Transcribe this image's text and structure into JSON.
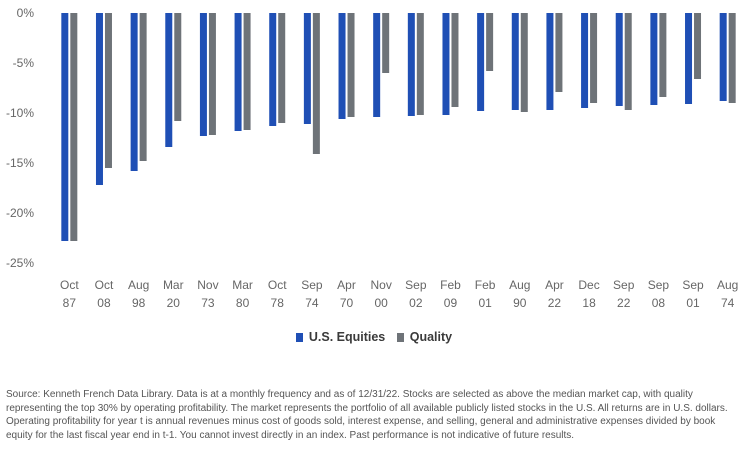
{
  "chart_data": {
    "type": "bar",
    "categories": [
      [
        "Oct",
        "87"
      ],
      [
        "Oct",
        "08"
      ],
      [
        "Aug",
        "98"
      ],
      [
        "Mar",
        "20"
      ],
      [
        "Nov",
        "73"
      ],
      [
        "Mar",
        "80"
      ],
      [
        "Oct",
        "78"
      ],
      [
        "Sep",
        "74"
      ],
      [
        "Apr",
        "70"
      ],
      [
        "Nov",
        "00"
      ],
      [
        "Sep",
        "02"
      ],
      [
        "Feb",
        "09"
      ],
      [
        "Feb",
        "01"
      ],
      [
        "Aug",
        "90"
      ],
      [
        "Apr",
        "22"
      ],
      [
        "Dec",
        "18"
      ],
      [
        "Sep",
        "22"
      ],
      [
        "Sep",
        "08"
      ],
      [
        "Sep",
        "01"
      ],
      [
        "Aug",
        "74"
      ]
    ],
    "series": [
      {
        "name": "U.S. Equities",
        "color": "#1f4fb5",
        "values": [
          -22.8,
          -17.2,
          -15.8,
          -13.4,
          -12.3,
          -11.8,
          -11.3,
          -11.1,
          -10.6,
          -10.4,
          -10.3,
          -10.2,
          -9.8,
          -9.7,
          -9.7,
          -9.5,
          -9.3,
          -9.2,
          -9.1,
          -8.8
        ]
      },
      {
        "name": "Quality",
        "color": "#6e7378",
        "values": [
          -22.8,
          -15.5,
          -14.8,
          -10.8,
          -12.2,
          -11.7,
          -11.0,
          -14.1,
          -10.4,
          -6.0,
          -10.2,
          -9.4,
          -5.8,
          -9.9,
          -7.9,
          -9.0,
          -9.7,
          -8.4,
          -6.6,
          -9.0
        ]
      }
    ],
    "yticks": [
      "0%",
      "-5%",
      "-10%",
      "-15%",
      "-20%",
      "-25%"
    ],
    "ylim": [
      -25,
      0
    ],
    "legend_position": "bottom-center",
    "grid": false
  },
  "source_note": "Source: Kenneth French Data Library. Data is at a monthly frequency and as of 12/31/22. Stocks are selected as above the median market cap, with quality representing the top 30% by operating profitability. The market represents the portfolio of all available publicly listed stocks in the U.S. All returns are in U.S. dollars. Operating profitability for year t is annual revenues minus cost of goods sold, interest expense, and selling, general and administrative expenses divided by book equity for the last fiscal year end in t-1. You cannot invest directly in an index. Past performance is not indicative of future results."
}
